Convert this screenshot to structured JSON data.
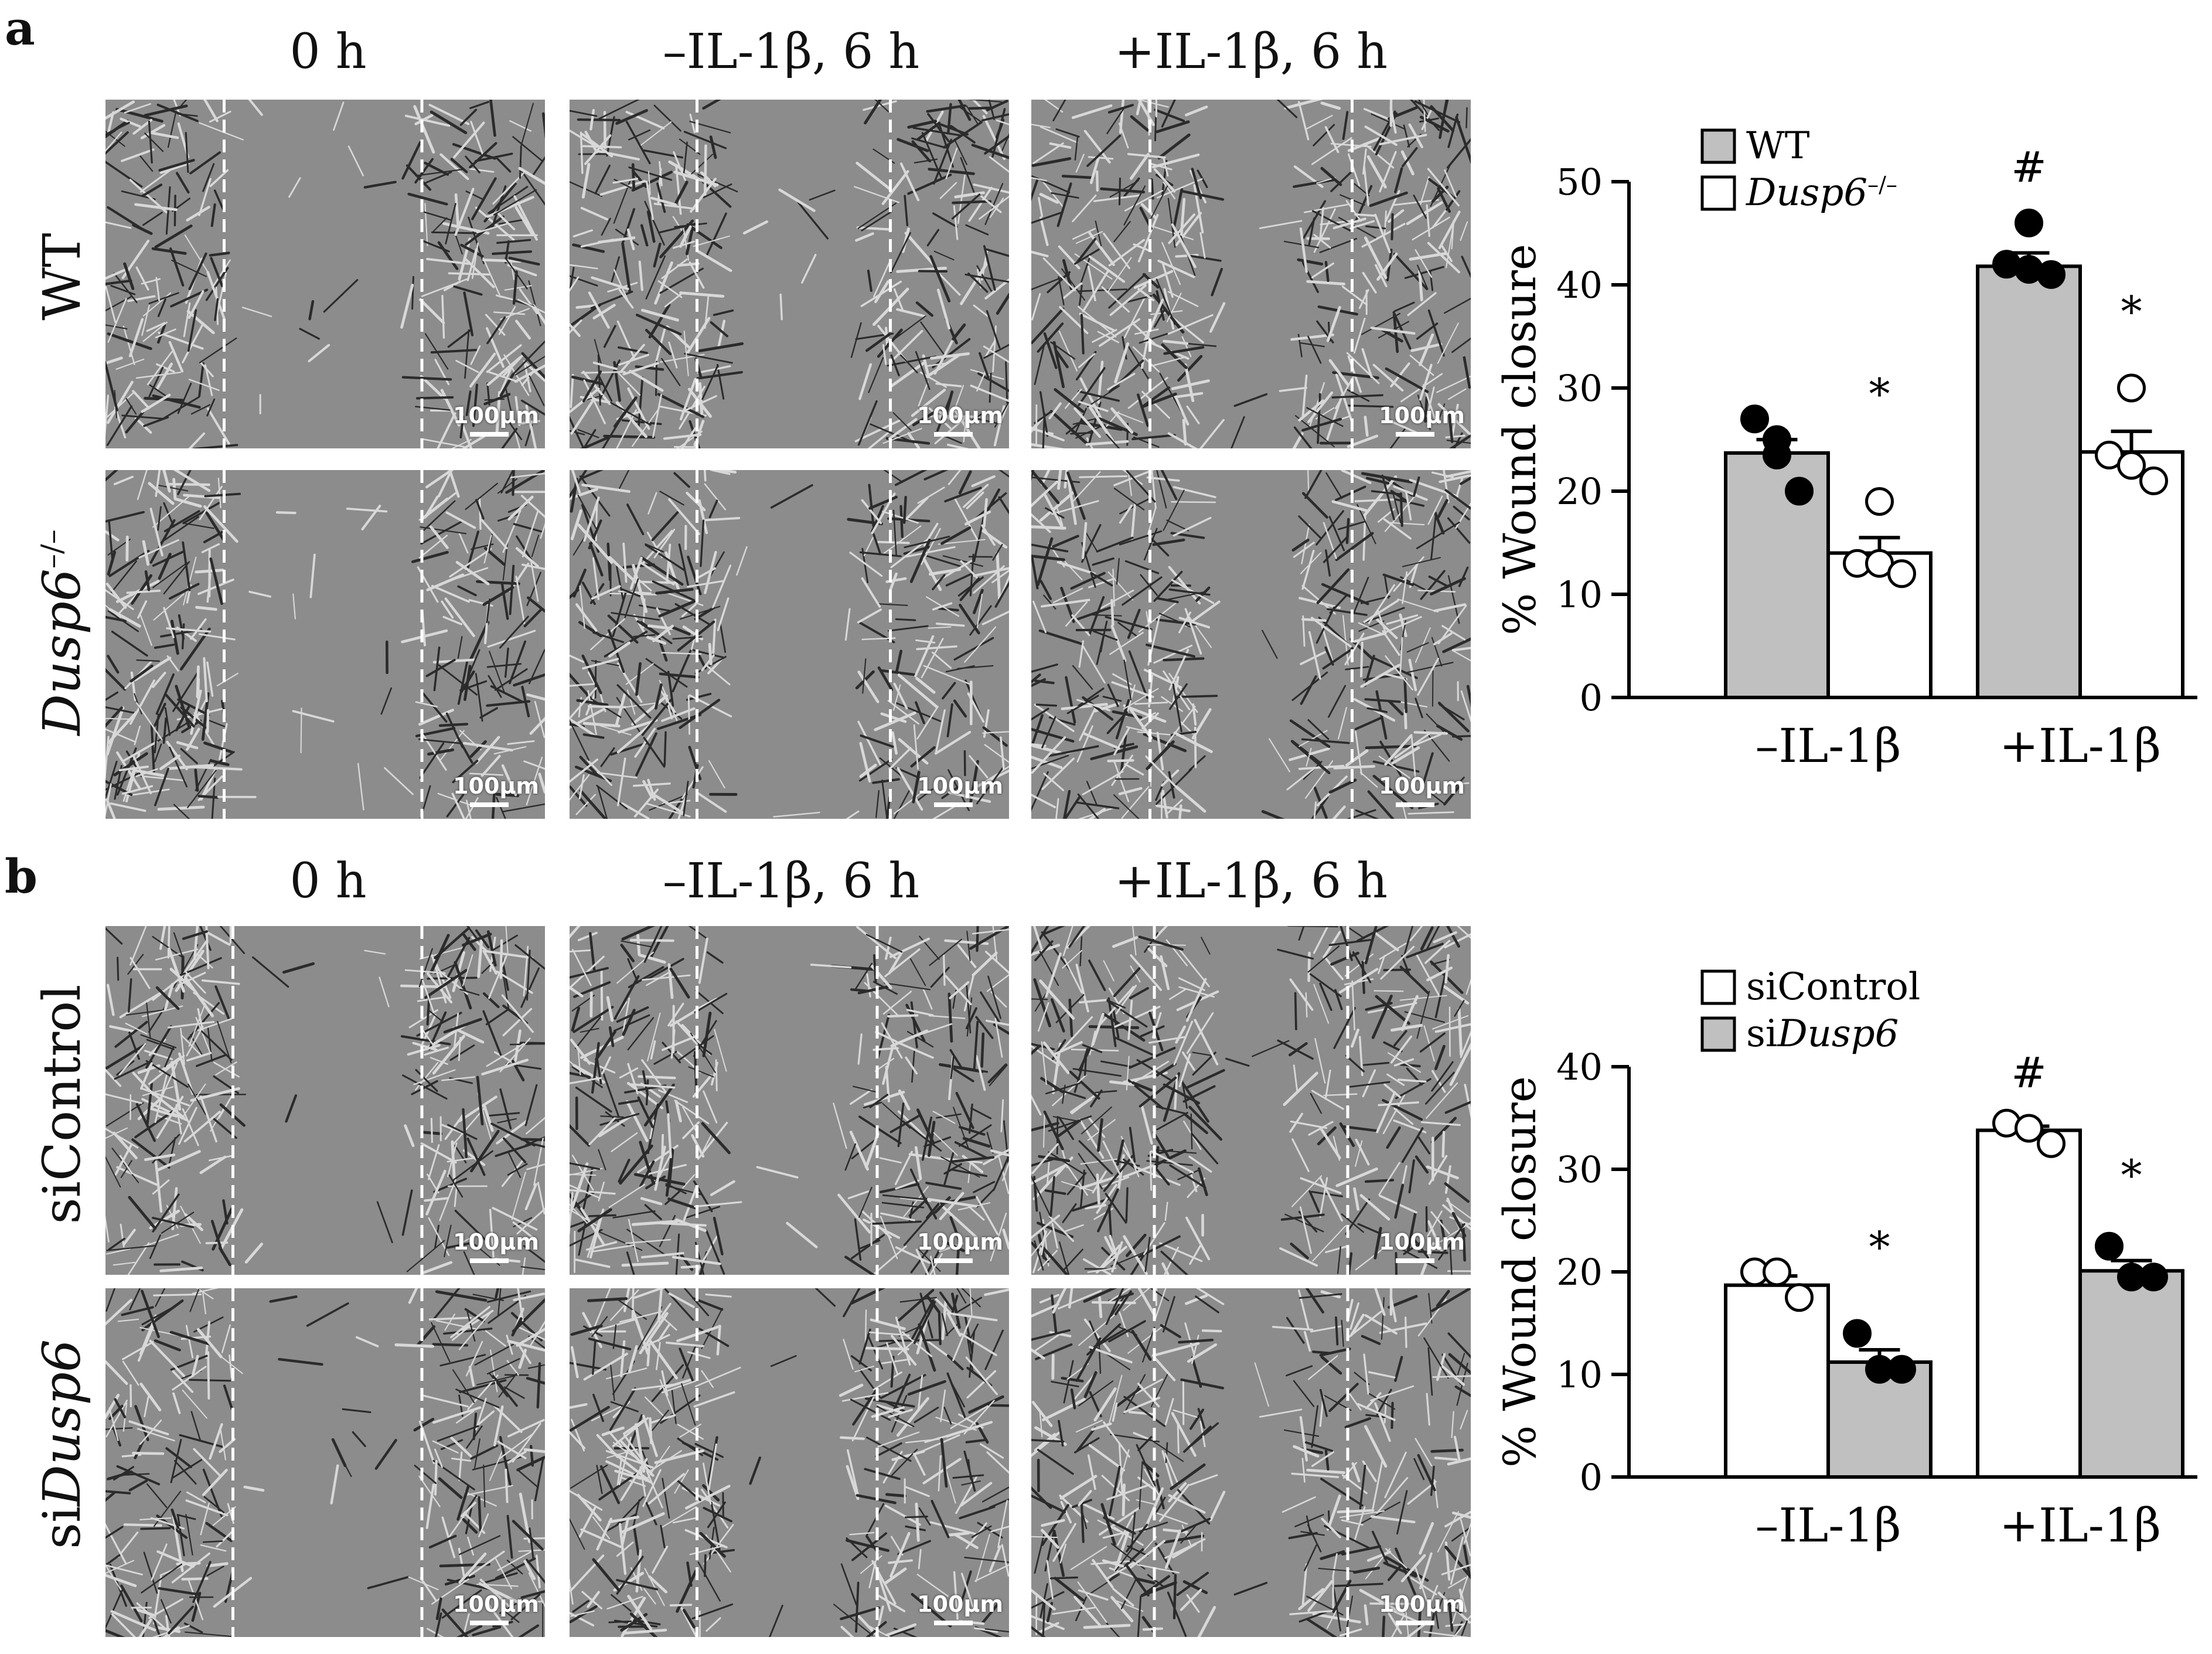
{
  "panels": [
    {
      "letter": "a",
      "col_headers": [
        "0 h",
        "–IL-1β, 6 h",
        "+IL-1β, 6 h"
      ],
      "row_labels": [
        {
          "text": "WT"
        },
        {
          "text": "Dusp6",
          "sup": "–/–",
          "italic": true
        }
      ],
      "scale_label": "100μm"
    },
    {
      "letter": "b",
      "col_headers": [
        "0 h",
        "–IL-1β, 6 h",
        "+IL-1β, 6 h"
      ],
      "row_labels": [
        {
          "text": "siControl"
        },
        {
          "prefix": "si",
          "text": "Dusp6",
          "italic": true
        }
      ],
      "scale_label": "100μm"
    }
  ],
  "chart_data": [
    {
      "type": "bar",
      "categories": [
        "–IL-1β",
        "+IL-1β"
      ],
      "ylabel": "% Wound closure",
      "ylim": [
        0,
        50
      ],
      "yticks": [
        0,
        10,
        20,
        30,
        40,
        50
      ],
      "legend": "top-left",
      "series": [
        {
          "name": "WT",
          "color": "#c0c0c0",
          "point_fill": "#000000",
          "values": [
            23.7,
            41.8
          ],
          "error": [
            1.3,
            1.3
          ],
          "points": [
            [
              25.0,
              27.0,
              23.5,
              20.0
            ],
            [
              46.0,
              42.0,
              41.5,
              41.0
            ]
          ]
        },
        {
          "name": "Dusp6",
          "name_sup": "–/–",
          "name_italic": true,
          "color": "#ffffff",
          "point_fill": "#ffffff",
          "values": [
            14.0,
            23.8
          ],
          "error": [
            1.5,
            2.0
          ],
          "points": [
            [
              19.0,
              13.0,
              13.0,
              12.0
            ],
            [
              30.0,
              23.5,
              22.5,
              21.0
            ]
          ]
        }
      ],
      "annotations": [
        {
          "text": "*",
          "category": 0,
          "series": 1,
          "y": 28
        },
        {
          "text": "#",
          "category": 1,
          "series": 0,
          "y": 50
        },
        {
          "text": "*",
          "category": 1,
          "series": 1,
          "y": 36
        }
      ]
    },
    {
      "type": "bar",
      "categories": [
        "–IL-1β",
        "+IL-1β"
      ],
      "ylabel": "% Wound closure",
      "ylim": [
        0,
        40
      ],
      "yticks": [
        0,
        10,
        20,
        30,
        40
      ],
      "legend": "top-left",
      "series": [
        {
          "name": "siControl",
          "color": "#ffffff",
          "point_fill": "#ffffff",
          "values": [
            18.7,
            33.8
          ],
          "error": [
            0.9,
            0.4
          ],
          "points": [
            [
              20.0,
              20.0,
              17.5
            ],
            [
              34.5,
              34.0,
              32.5
            ]
          ]
        },
        {
          "name": "Dusp6",
          "name_prefix": "si",
          "name_italic": true,
          "color": "#c0c0c0",
          "point_fill": "#000000",
          "values": [
            11.2,
            20.1
          ],
          "error": [
            1.2,
            1.0
          ],
          "points": [
            [
              14.0,
              10.5,
              10.5
            ],
            [
              22.5,
              19.5,
              19.5
            ]
          ]
        }
      ],
      "annotations": [
        {
          "text": "*",
          "category": 0,
          "series": 1,
          "y": 21
        },
        {
          "text": "#",
          "category": 1,
          "series": 0,
          "y": 38
        },
        {
          "text": "*",
          "category": 1,
          "series": 1,
          "y": 28
        }
      ]
    }
  ]
}
